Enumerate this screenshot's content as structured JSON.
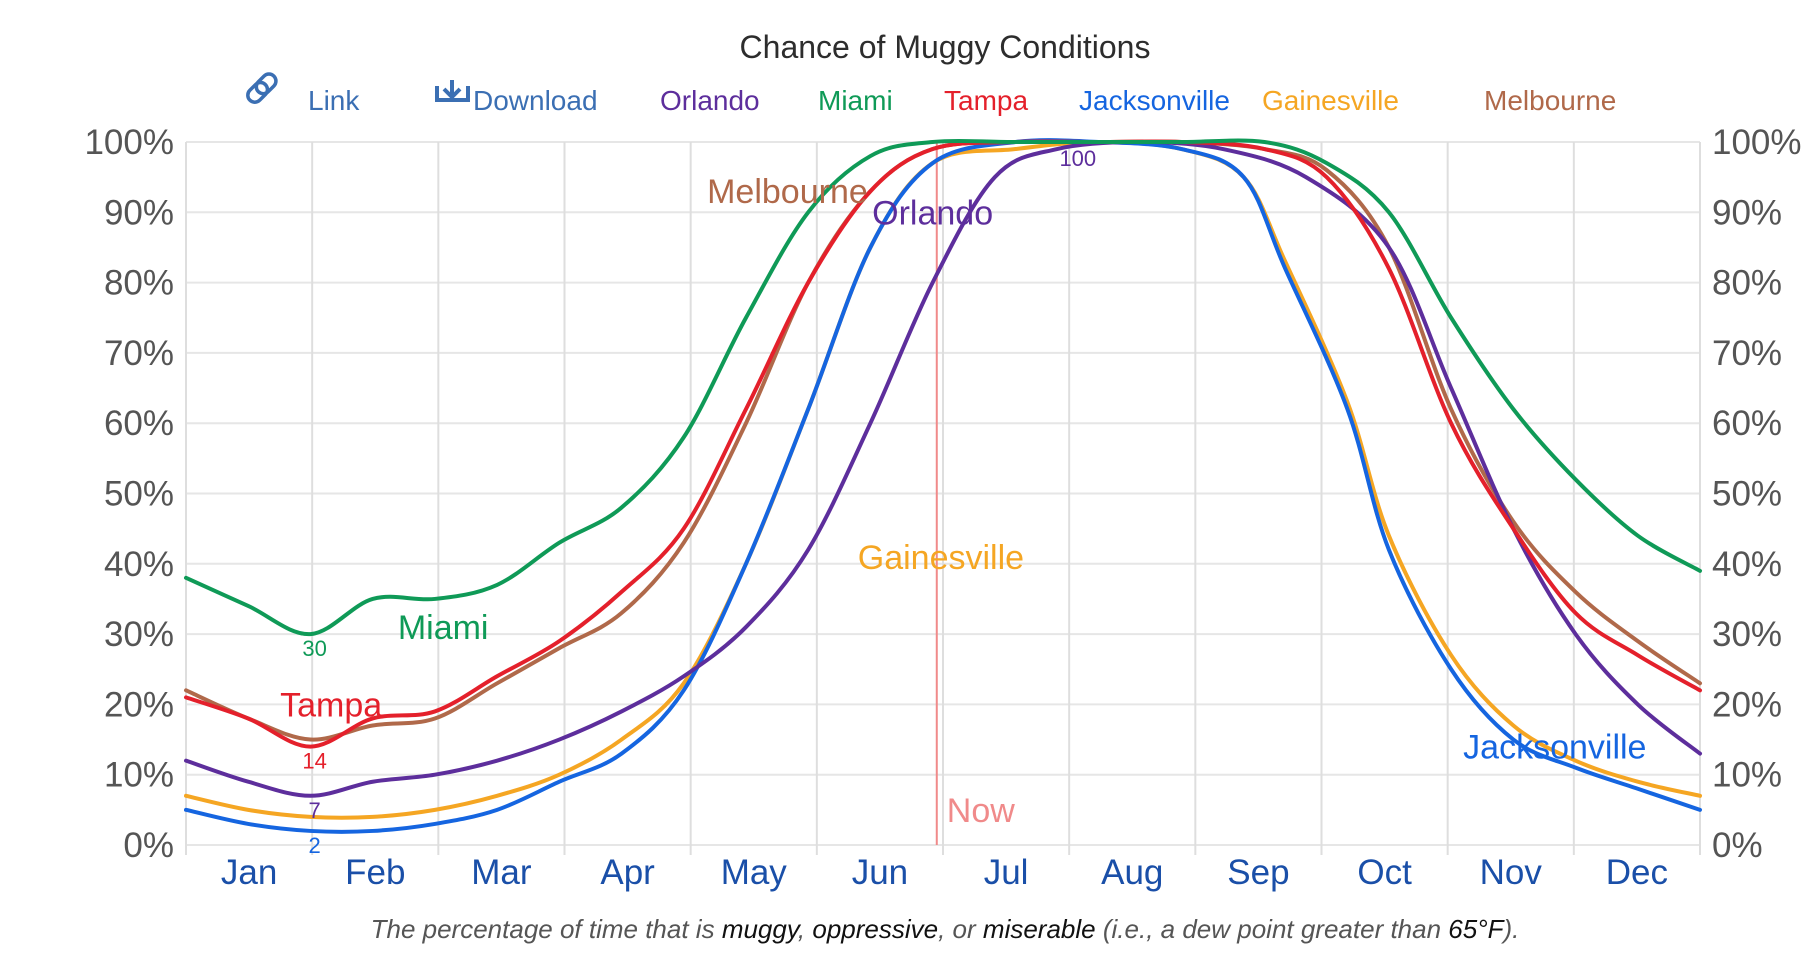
{
  "chart_data": {
    "type": "line",
    "title": "Chance of Muggy Conditions",
    "toolbar": {
      "link_label": "Link",
      "download_label": "Download"
    },
    "caption": {
      "prefix": "The percentage of time that is ",
      "muggy": "muggy",
      "sep1": ", ",
      "oppressive": "oppressive",
      "sep2": ", or ",
      "miserable": "miserable",
      "suffix_a": " (i.e., a dew point greater than ",
      "threshold": "65°F",
      "suffix_b": ")."
    },
    "months": [
      "Jan",
      "Feb",
      "Mar",
      "Apr",
      "May",
      "Jun",
      "Jul",
      "Aug",
      "Sep",
      "Oct",
      "Nov",
      "Dec"
    ],
    "yticks": [
      "0%",
      "10%",
      "20%",
      "30%",
      "40%",
      "50%",
      "60%",
      "70%",
      "80%",
      "90%",
      "100%"
    ],
    "ylim": [
      0,
      100
    ],
    "grid": true,
    "now": {
      "label": "Now",
      "day": 181,
      "color": "#f08a8a"
    },
    "series": [
      {
        "name": "Orlando",
        "color": "#5d2e9c",
        "values": [
          [
            0,
            12
          ],
          [
            15,
            9
          ],
          [
            30,
            7
          ],
          [
            45,
            9
          ],
          [
            60,
            10
          ],
          [
            75,
            12
          ],
          [
            90,
            15
          ],
          [
            105,
            19
          ],
          [
            120,
            24
          ],
          [
            135,
            31
          ],
          [
            150,
            42
          ],
          [
            165,
            60
          ],
          [
            180,
            80
          ],
          [
            195,
            95
          ],
          [
            210,
            99
          ],
          [
            230,
            100
          ],
          [
            250,
            99
          ],
          [
            270,
            95
          ],
          [
            290,
            85
          ],
          [
            305,
            65
          ],
          [
            320,
            45
          ],
          [
            335,
            30
          ],
          [
            350,
            20
          ],
          [
            365,
            13
          ]
        ],
        "min_label": {
          "day": 31,
          "value": 7,
          "text": "7"
        },
        "max_label": {
          "day": 215,
          "value": 100,
          "text": "100"
        }
      },
      {
        "name": "Miami",
        "color": "#0f9a57",
        "values": [
          [
            0,
            38
          ],
          [
            15,
            34
          ],
          [
            30,
            30
          ],
          [
            45,
            35
          ],
          [
            60,
            35
          ],
          [
            75,
            37
          ],
          [
            90,
            43
          ],
          [
            105,
            48
          ],
          [
            120,
            58
          ],
          [
            135,
            75
          ],
          [
            150,
            90
          ],
          [
            165,
            98
          ],
          [
            180,
            100
          ],
          [
            200,
            100
          ],
          [
            220,
            100
          ],
          [
            240,
            100
          ],
          [
            260,
            100
          ],
          [
            275,
            97
          ],
          [
            290,
            90
          ],
          [
            305,
            75
          ],
          [
            320,
            62
          ],
          [
            335,
            52
          ],
          [
            350,
            44
          ],
          [
            365,
            39
          ]
        ],
        "min_label": {
          "day": 31,
          "value": 30,
          "text": "30"
        }
      },
      {
        "name": "Tampa",
        "color": "#e4202b",
        "values": [
          [
            0,
            21
          ],
          [
            15,
            18
          ],
          [
            30,
            14
          ],
          [
            45,
            18
          ],
          [
            60,
            19
          ],
          [
            75,
            24
          ],
          [
            90,
            29
          ],
          [
            105,
            36
          ],
          [
            120,
            45
          ],
          [
            135,
            62
          ],
          [
            150,
            80
          ],
          [
            165,
            93
          ],
          [
            180,
            99
          ],
          [
            200,
            100
          ],
          [
            220,
            100
          ],
          [
            240,
            100
          ],
          [
            260,
            99
          ],
          [
            275,
            95
          ],
          [
            290,
            82
          ],
          [
            305,
            60
          ],
          [
            320,
            45
          ],
          [
            335,
            33
          ],
          [
            350,
            27
          ],
          [
            365,
            22
          ]
        ],
        "min_label": {
          "day": 31,
          "value": 14,
          "text": "14"
        }
      },
      {
        "name": "Jacksonville",
        "color": "#1565e0",
        "values": [
          [
            0,
            5
          ],
          [
            15,
            3
          ],
          [
            30,
            2
          ],
          [
            45,
            2
          ],
          [
            60,
            3
          ],
          [
            75,
            5
          ],
          [
            90,
            9
          ],
          [
            105,
            13
          ],
          [
            120,
            22
          ],
          [
            135,
            40
          ],
          [
            150,
            62
          ],
          [
            165,
            85
          ],
          [
            180,
            97
          ],
          [
            200,
            100
          ],
          [
            220,
            100
          ],
          [
            240,
            99
          ],
          [
            255,
            95
          ],
          [
            265,
            82
          ],
          [
            280,
            62
          ],
          [
            290,
            42
          ],
          [
            305,
            25
          ],
          [
            320,
            15
          ],
          [
            335,
            11
          ],
          [
            350,
            8
          ],
          [
            365,
            5
          ]
        ],
        "min_label": {
          "day": 31,
          "value": 2,
          "text": "2"
        }
      },
      {
        "name": "Gainesville",
        "color": "#f5a623",
        "values": [
          [
            0,
            7
          ],
          [
            15,
            5
          ],
          [
            30,
            4
          ],
          [
            45,
            4
          ],
          [
            60,
            5
          ],
          [
            75,
            7
          ],
          [
            90,
            10
          ],
          [
            105,
            15
          ],
          [
            120,
            23
          ],
          [
            135,
            40
          ],
          [
            150,
            62
          ],
          [
            165,
            85
          ],
          [
            180,
            97
          ],
          [
            200,
            99
          ],
          [
            220,
            100
          ],
          [
            240,
            99
          ],
          [
            255,
            95
          ],
          [
            265,
            83
          ],
          [
            280,
            63
          ],
          [
            290,
            44
          ],
          [
            305,
            27
          ],
          [
            320,
            17
          ],
          [
            335,
            12
          ],
          [
            350,
            9
          ],
          [
            365,
            7
          ]
        ]
      },
      {
        "name": "Melbourne",
        "color": "#b0694a",
        "values": [
          [
            0,
            22
          ],
          [
            15,
            18
          ],
          [
            30,
            15
          ],
          [
            45,
            17
          ],
          [
            60,
            18
          ],
          [
            75,
            23
          ],
          [
            90,
            28
          ],
          [
            105,
            33
          ],
          [
            120,
            43
          ],
          [
            135,
            60
          ],
          [
            150,
            80
          ],
          [
            165,
            93
          ],
          [
            180,
            99
          ],
          [
            200,
            100
          ],
          [
            220,
            100
          ],
          [
            240,
            100
          ],
          [
            260,
            99
          ],
          [
            275,
            96
          ],
          [
            290,
            85
          ],
          [
            305,
            62
          ],
          [
            320,
            46
          ],
          [
            335,
            36
          ],
          [
            350,
            29
          ],
          [
            365,
            23
          ]
        ]
      }
    ],
    "series_labels": [
      {
        "name": "Melbourne",
        "text": "Melbourne",
        "day": 145,
        "value": 93,
        "color": "#b0694a"
      },
      {
        "name": "Orlando",
        "text": "Orlando",
        "day": 180,
        "value": 90,
        "color": "#5d2e9c"
      },
      {
        "name": "Gainesville",
        "text": "Gainesville",
        "day": 182,
        "value": 41,
        "color": "#f5a623"
      },
      {
        "name": "Miami",
        "text": "Miami",
        "day": 62,
        "value": 31,
        "color": "#0f9a57"
      },
      {
        "name": "Tampa",
        "text": "Tampa",
        "day": 35,
        "value": 20,
        "color": "#e4202b"
      },
      {
        "name": "Jacksonville",
        "text": "Jacksonville",
        "day": 330,
        "value": 14,
        "color": "#1565e0"
      }
    ]
  }
}
